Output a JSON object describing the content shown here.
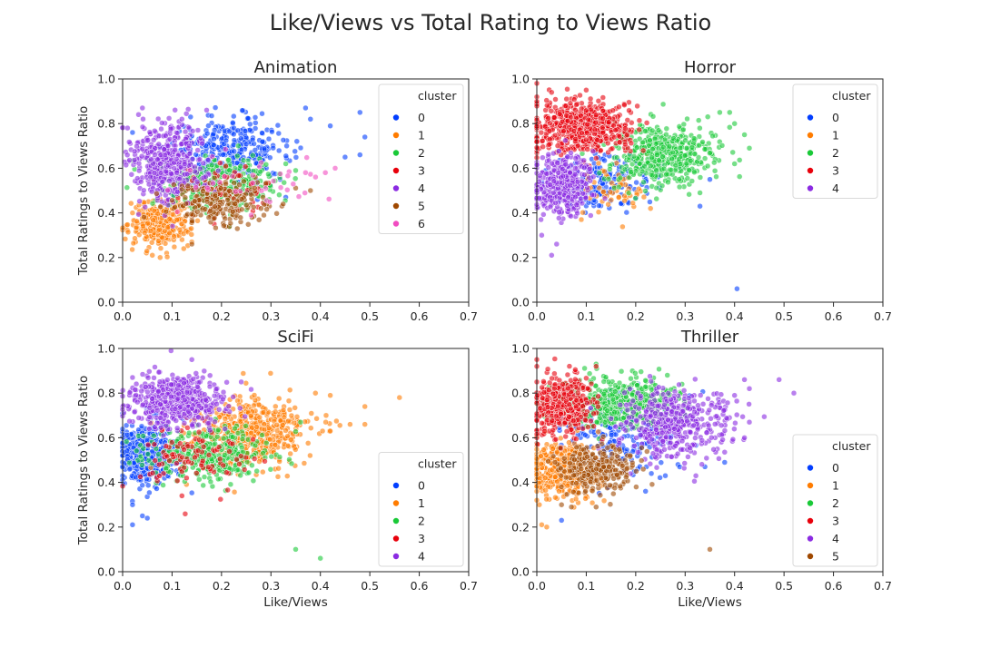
{
  "figure": {
    "title": "Like/Views vs Total Rating to Views Ratio",
    "xlabel": "Like/Views",
    "ylabel": "Total Ratings to Views Ratio"
  },
  "palette": [
    "#023eff",
    "#ff7c00",
    "#1ac938",
    "#e8000b",
    "#8b2be2",
    "#9f4800",
    "#f14cc1"
  ],
  "chart_data": [
    {
      "type": "scatter",
      "title": "Animation",
      "xlabel": "",
      "ylabel": "Total Ratings to Views Ratio",
      "xlim": [
        0.0,
        0.7
      ],
      "ylim": [
        0.0,
        1.0
      ],
      "xticks": [
        "0.0",
        "0.1",
        "0.2",
        "0.3",
        "0.4",
        "0.5",
        "0.6",
        "0.7"
      ],
      "yticks": [
        "0.0",
        "0.2",
        "0.4",
        "0.6",
        "0.8",
        "1.0"
      ],
      "legend": {
        "title": "cluster",
        "position": "upper-right"
      },
      "clusters": [
        {
          "name": "0",
          "cx": 0.22,
          "cy": 0.68,
          "sx": 0.06,
          "sy": 0.07,
          "n": 320,
          "extra": [
            [
              0.49,
              0.74
            ],
            [
              0.48,
              0.85
            ],
            [
              0.42,
              0.79
            ],
            [
              0.38,
              0.82
            ],
            [
              0.37,
              0.87
            ],
            [
              0.45,
              0.65
            ],
            [
              0.48,
              0.66
            ],
            [
              0.33,
              0.47
            ],
            [
              0.02,
              0.76
            ]
          ]
        },
        {
          "name": "1",
          "cx": 0.075,
          "cy": 0.35,
          "sx": 0.03,
          "sy": 0.05,
          "n": 320,
          "extra": [
            [
              0.06,
              0.21
            ],
            [
              0.14,
              0.27
            ],
            [
              0.02,
              0.4
            ]
          ]
        },
        {
          "name": "2",
          "cx": 0.2,
          "cy": 0.54,
          "sx": 0.06,
          "sy": 0.06,
          "n": 300,
          "extra": [
            [
              0.35,
              0.59
            ],
            [
              0.33,
              0.62
            ],
            [
              0.06,
              0.62
            ]
          ]
        },
        {
          "name": "3",
          "cx": 0.2,
          "cy": 0.5,
          "sx": 0.05,
          "sy": 0.05,
          "n": 70,
          "extra": []
        },
        {
          "name": "4",
          "cx": 0.09,
          "cy": 0.63,
          "sx": 0.04,
          "sy": 0.09,
          "n": 420,
          "extra": [
            [
              0.04,
              0.87
            ],
            [
              0.12,
              0.82
            ],
            [
              0.17,
              0.86
            ],
            [
              0.01,
              0.78
            ]
          ]
        },
        {
          "name": "5",
          "cx": 0.2,
          "cy": 0.44,
          "sx": 0.05,
          "sy": 0.05,
          "n": 200,
          "extra": [
            [
              0.38,
              0.5
            ],
            [
              0.14,
              0.26
            ],
            [
              0.28,
              0.42
            ]
          ]
        },
        {
          "name": "6",
          "cx": 0.26,
          "cy": 0.54,
          "sx": 0.08,
          "sy": 0.05,
          "n": 35,
          "extra": [
            [
              0.43,
              0.6
            ],
            [
              0.41,
              0.58
            ],
            [
              0.26,
              0.39
            ],
            [
              0.37,
              0.58
            ]
          ]
        }
      ]
    },
    {
      "type": "scatter",
      "title": "Horror",
      "xlabel": "",
      "ylabel": "",
      "xlim": [
        0.0,
        0.7
      ],
      "ylim": [
        0.0,
        1.0
      ],
      "xticks": [
        "0.0",
        "0.1",
        "0.2",
        "0.3",
        "0.4",
        "0.5",
        "0.6",
        "0.7"
      ],
      "yticks": [
        "0.0",
        "0.2",
        "0.4",
        "0.6",
        "0.8",
        "1.0"
      ],
      "legend": {
        "title": "cluster",
        "position": "upper-right"
      },
      "clusters": [
        {
          "name": "0",
          "cx": 0.13,
          "cy": 0.54,
          "sx": 0.05,
          "sy": 0.06,
          "n": 200,
          "extra": [
            [
              0.405,
              0.06
            ],
            [
              0.33,
              0.43
            ],
            [
              0.29,
              0.6
            ],
            [
              0.35,
              0.55
            ]
          ]
        },
        {
          "name": "1",
          "cx": 0.14,
          "cy": 0.52,
          "sx": 0.04,
          "sy": 0.06,
          "n": 60,
          "extra": [
            [
              0.23,
              0.42
            ],
            [
              0.09,
              0.37
            ]
          ]
        },
        {
          "name": "2",
          "cx": 0.26,
          "cy": 0.66,
          "sx": 0.05,
          "sy": 0.07,
          "n": 450,
          "extra": [
            [
              0.43,
              0.69
            ],
            [
              0.42,
              0.75
            ],
            [
              0.39,
              0.85
            ],
            [
              0.37,
              0.85
            ],
            [
              0.4,
              0.8
            ],
            [
              0.33,
              0.49
            ],
            [
              0.4,
              0.62
            ]
          ]
        },
        {
          "name": "3",
          "cx": 0.09,
          "cy": 0.78,
          "sx": 0.05,
          "sy": 0.06,
          "n": 550,
          "extra": [
            [
              0.03,
              0.94
            ],
            [
              0.1,
              0.95
            ],
            [
              0.06,
              0.91
            ],
            [
              0.0,
              0.98
            ]
          ]
        },
        {
          "name": "4",
          "cx": 0.05,
          "cy": 0.52,
          "sx": 0.03,
          "sy": 0.06,
          "n": 400,
          "extra": [
            [
              0.03,
              0.21
            ],
            [
              0.04,
              0.26
            ],
            [
              0.01,
              0.3
            ]
          ]
        }
      ]
    },
    {
      "type": "scatter",
      "title": "SciFi",
      "xlabel": "Like/Views",
      "ylabel": "Total Ratings to Views Ratio",
      "xlim": [
        0.0,
        0.7
      ],
      "ylim": [
        0.0,
        1.0
      ],
      "xticks": [
        "0.0",
        "0.1",
        "0.2",
        "0.3",
        "0.4",
        "0.5",
        "0.6",
        "0.7"
      ],
      "yticks": [
        "0.0",
        "0.2",
        "0.4",
        "0.6",
        "0.8",
        "1.0"
      ],
      "legend": {
        "title": "cluster",
        "position": "lower-right"
      },
      "clusters": [
        {
          "name": "0",
          "cx": 0.05,
          "cy": 0.52,
          "sx": 0.03,
          "sy": 0.07,
          "n": 450,
          "extra": [
            [
              0.02,
              0.21
            ],
            [
              0.05,
              0.24
            ],
            [
              0.04,
              0.25
            ],
            [
              0.02,
              0.3
            ]
          ]
        },
        {
          "name": "1",
          "cx": 0.26,
          "cy": 0.62,
          "sx": 0.06,
          "sy": 0.08,
          "n": 500,
          "extra": [
            [
              0.56,
              0.78
            ],
            [
              0.49,
              0.74
            ],
            [
              0.49,
              0.66
            ],
            [
              0.46,
              0.66
            ],
            [
              0.42,
              0.79
            ],
            [
              0.39,
              0.8
            ],
            [
              0.42,
              0.63
            ]
          ]
        },
        {
          "name": "2",
          "cx": 0.17,
          "cy": 0.53,
          "sx": 0.06,
          "sy": 0.06,
          "n": 350,
          "extra": [
            [
              0.35,
              0.1
            ],
            [
              0.4,
              0.06
            ],
            [
              0.36,
              0.67
            ]
          ]
        },
        {
          "name": "3",
          "cx": 0.15,
          "cy": 0.52,
          "sx": 0.06,
          "sy": 0.07,
          "n": 100,
          "extra": [
            [
              0.12,
              0.34
            ]
          ]
        },
        {
          "name": "4",
          "cx": 0.11,
          "cy": 0.76,
          "sx": 0.05,
          "sy": 0.06,
          "n": 450,
          "extra": [
            [
              0.14,
              0.95
            ],
            [
              0.02,
              0.87
            ],
            [
              0.24,
              0.85
            ]
          ]
        }
      ]
    },
    {
      "type": "scatter",
      "title": "Thriller",
      "xlabel": "Like/Views",
      "ylabel": "",
      "xlim": [
        0.0,
        0.7
      ],
      "ylim": [
        0.0,
        1.0
      ],
      "xticks": [
        "0.0",
        "0.1",
        "0.2",
        "0.3",
        "0.4",
        "0.5",
        "0.6",
        "0.7"
      ],
      "yticks": [
        "0.0",
        "0.2",
        "0.4",
        "0.6",
        "0.8",
        "1.0"
      ],
      "legend": {
        "title": "cluster",
        "position": "lower-right"
      },
      "clusters": [
        {
          "name": "0",
          "cx": 0.16,
          "cy": 0.62,
          "sx": 0.06,
          "sy": 0.1,
          "n": 220,
          "extra": [
            [
              0.38,
              0.49
            ],
            [
              0.34,
              0.47
            ],
            [
              0.22,
              0.36
            ],
            [
              0.26,
              0.43
            ],
            [
              0.05,
              0.23
            ]
          ]
        },
        {
          "name": "1",
          "cx": 0.05,
          "cy": 0.46,
          "sx": 0.035,
          "sy": 0.06,
          "n": 420,
          "extra": [
            [
              0.02,
              0.2
            ],
            [
              0.01,
              0.21
            ],
            [
              0.0,
              0.32
            ]
          ]
        },
        {
          "name": "2",
          "cx": 0.17,
          "cy": 0.76,
          "sx": 0.06,
          "sy": 0.06,
          "n": 450,
          "extra": [
            [
              0.12,
              0.93
            ]
          ]
        },
        {
          "name": "3",
          "cx": 0.05,
          "cy": 0.74,
          "sx": 0.03,
          "sy": 0.07,
          "n": 350,
          "extra": [
            [
              0.0,
              0.92
            ],
            [
              0.12,
              0.92
            ]
          ]
        },
        {
          "name": "4",
          "cx": 0.28,
          "cy": 0.67,
          "sx": 0.06,
          "sy": 0.08,
          "n": 420,
          "extra": [
            [
              0.49,
              0.86
            ],
            [
              0.52,
              0.8
            ],
            [
              0.43,
              0.82
            ],
            [
              0.42,
              0.86
            ],
            [
              0.4,
              0.79
            ],
            [
              0.43,
              0.67
            ],
            [
              0.42,
              0.6
            ]
          ]
        },
        {
          "name": "5",
          "cx": 0.12,
          "cy": 0.46,
          "sx": 0.04,
          "sy": 0.05,
          "n": 250,
          "extra": [
            [
              0.35,
              0.1
            ],
            [
              0.05,
              0.3
            ],
            [
              0.07,
              0.29
            ],
            [
              0.12,
              0.29
            ]
          ]
        }
      ]
    }
  ]
}
